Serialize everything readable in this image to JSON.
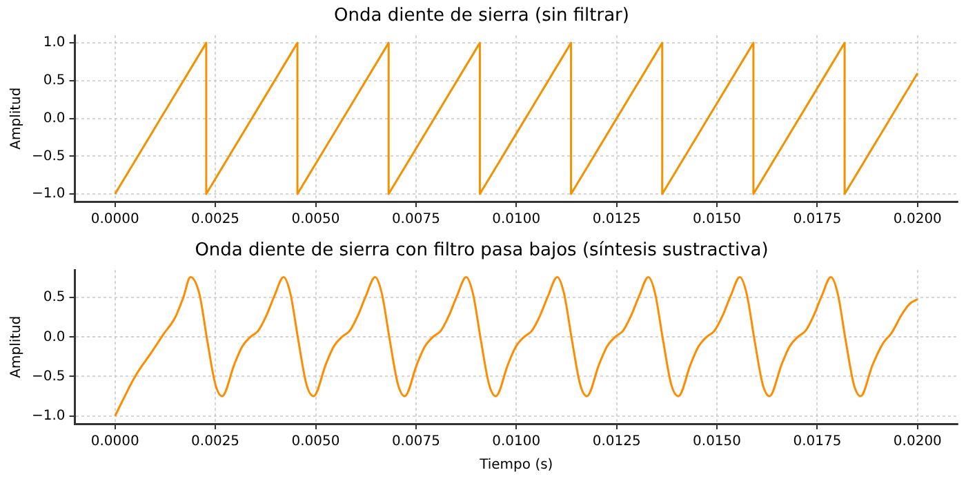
{
  "chart_data": [
    {
      "type": "line",
      "title": "Onda diente de sierra (sin filtrar)",
      "ylabel": "Amplitud",
      "x": [
        0,
        0.002273,
        0.002273,
        0.004545,
        0.004545,
        0.006818,
        0.006818,
        0.009091,
        0.009091,
        0.011364,
        0.011364,
        0.013636,
        0.013636,
        0.015909,
        0.015909,
        0.018182,
        0.018182,
        0.02
      ],
      "series": [
        {
          "color": "#f39200",
          "values": [
            -1,
            1,
            -1,
            1,
            -1,
            1,
            -1,
            1,
            -1,
            1,
            -1,
            1,
            -1,
            1,
            -1,
            1,
            -1,
            0.6
          ]
        }
      ],
      "xlim": [
        -0.001,
        0.021
      ],
      "xticks": [
        {
          "value": 0,
          "label": "0.0000"
        },
        {
          "value": 0.0025,
          "label": "0.0025"
        },
        {
          "value": 0.005,
          "label": "0.0050"
        },
        {
          "value": 0.0075,
          "label": "0.0075"
        },
        {
          "value": 0.01,
          "label": "0.0100"
        },
        {
          "value": 0.0125,
          "label": "0.0125"
        },
        {
          "value": 0.015,
          "label": "0.0150"
        },
        {
          "value": 0.0175,
          "label": "0.0175"
        },
        {
          "value": 0.02,
          "label": "0.0200"
        }
      ],
      "ylim": [
        -1.1,
        1.1
      ],
      "yticks": [
        {
          "value": -1,
          "label": "−1.0"
        },
        {
          "value": -0.5,
          "label": "−0.5"
        },
        {
          "value": 0,
          "label": "0.0"
        },
        {
          "value": 0.5,
          "label": "0.5"
        },
        {
          "value": 1,
          "label": "1.0"
        }
      ],
      "grid": true,
      "line_style": "solid",
      "marker": "none"
    },
    {
      "type": "line",
      "title": "Onda diente de sierra con filtro pasa bajos (síntesis sustractiva)",
      "xlabel": "Tiempo (s)",
      "ylabel": "Amplitud",
      "x": [
        0,
        0.0005,
        0.0009,
        0.0012,
        0.0015,
        0.0017,
        0.00188,
        0.0021,
        0.0023,
        0.0025,
        0.00267,
        0.00297,
        0.00317,
        0.00337,
        0.00357,
        0.00377,
        0.00397,
        0.0042,
        0.00437,
        0.00457,
        0.00477,
        0.00495,
        0.00525,
        0.00545,
        0.00565,
        0.00585,
        0.00605,
        0.00625,
        0.00648,
        0.00665,
        0.00685,
        0.00705,
        0.00722,
        0.00752,
        0.00772,
        0.00792,
        0.00812,
        0.00832,
        0.00852,
        0.00875,
        0.00892,
        0.00912,
        0.00932,
        0.00949,
        0.00979,
        0.00999,
        0.01019,
        0.01039,
        0.01059,
        0.01079,
        0.01102,
        0.01119,
        0.01139,
        0.01159,
        0.01176,
        0.01206,
        0.01226,
        0.01246,
        0.01266,
        0.01286,
        0.01306,
        0.01329,
        0.01346,
        0.01366,
        0.01386,
        0.01404,
        0.01434,
        0.01454,
        0.01474,
        0.01494,
        0.01514,
        0.01534,
        0.01557,
        0.01574,
        0.01594,
        0.01614,
        0.01631,
        0.01661,
        0.01681,
        0.01701,
        0.01721,
        0.01741,
        0.01761,
        0.01784,
        0.01801,
        0.01821,
        0.01841,
        0.01858,
        0.01888,
        0.01915,
        0.01935,
        0.0196,
        0.0198,
        0.02
      ],
      "series": [
        {
          "color": "#ff8c00",
          "values": [
            -1,
            -0.5,
            -0.2,
            0.03,
            0.25,
            0.5,
            0.76,
            0.55,
            -0.05,
            -0.6,
            -0.75,
            -0.35,
            -0.12,
            0,
            0.08,
            0.27,
            0.52,
            0.76,
            0.55,
            -0.05,
            -0.6,
            -0.75,
            -0.35,
            -0.12,
            0,
            0.08,
            0.27,
            0.52,
            0.76,
            0.55,
            -0.05,
            -0.6,
            -0.75,
            -0.35,
            -0.12,
            0,
            0.08,
            0.27,
            0.52,
            0.76,
            0.55,
            -0.05,
            -0.6,
            -0.75,
            -0.35,
            -0.12,
            0,
            0.08,
            0.27,
            0.52,
            0.76,
            0.55,
            -0.05,
            -0.6,
            -0.75,
            -0.35,
            -0.12,
            0,
            0.08,
            0.27,
            0.52,
            0.76,
            0.55,
            -0.05,
            -0.6,
            -0.75,
            -0.35,
            -0.12,
            0,
            0.08,
            0.27,
            0.52,
            0.76,
            0.55,
            -0.05,
            -0.6,
            -0.75,
            -0.35,
            -0.12,
            0,
            0.08,
            0.27,
            0.52,
            0.76,
            0.55,
            -0.05,
            -0.6,
            -0.75,
            -0.35,
            -0.07,
            0.05,
            0.28,
            0.42,
            0.48
          ]
        }
      ],
      "xlim": [
        -0.001,
        0.021
      ],
      "xticks": [
        {
          "value": 0,
          "label": "0.0000"
        },
        {
          "value": 0.0025,
          "label": "0.0025"
        },
        {
          "value": 0.005,
          "label": "0.0050"
        },
        {
          "value": 0.0075,
          "label": "0.0075"
        },
        {
          "value": 0.01,
          "label": "0.0100"
        },
        {
          "value": 0.0125,
          "label": "0.0125"
        },
        {
          "value": 0.015,
          "label": "0.0150"
        },
        {
          "value": 0.0175,
          "label": "0.0175"
        },
        {
          "value": 0.02,
          "label": "0.0200"
        }
      ],
      "ylim": [
        -1.1,
        0.85
      ],
      "yticks": [
        {
          "value": -1,
          "label": "−1.0"
        },
        {
          "value": -0.5,
          "label": "−0.5"
        },
        {
          "value": 0,
          "label": "0.0"
        },
        {
          "value": 0.5,
          "label": "0.5"
        }
      ],
      "grid": true,
      "line_style": "solid",
      "marker": "none"
    }
  ]
}
